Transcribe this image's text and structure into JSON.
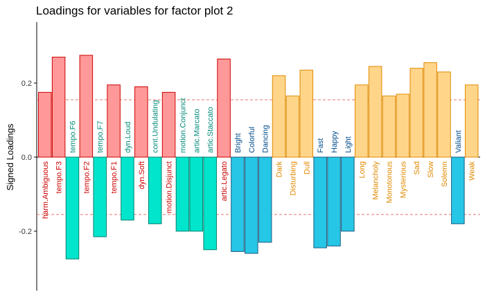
{
  "chart_data": {
    "type": "bar",
    "title": "Loadings for variables for factor plot 2",
    "xlabel": "",
    "ylabel": "Signed Loadings",
    "ylim": [
      -0.36,
      0.36
    ],
    "yticks": [
      -0.2,
      0.0,
      0.2
    ],
    "ytick_labels": [
      "-0.2",
      "0.0",
      "0.2"
    ],
    "reference_lines": [
      0.155,
      -0.155
    ],
    "grid": false,
    "colors": {
      "red_fill": "#FF9999",
      "red_stroke": "#CC0000",
      "red_text": "#CC0000",
      "teal_fill": "#00E5CC",
      "teal_stroke": "#008070",
      "teal_text": "#008B7A",
      "blue_fill": "#26C6E6",
      "blue_stroke": "#1A5C80",
      "blue_text": "#004C8C",
      "orange_fill": "#FFD58A",
      "orange_stroke": "#E08A00",
      "orange_text": "#E08A00",
      "refline": "#E8766F"
    },
    "categories": [
      "harm.Ambiguous",
      "tempo.F3",
      "tempo.F6",
      "tempo.F2",
      "tempo.F7",
      "tempo.F1",
      "dyn.Loud",
      "dyn.Soft",
      "cont.Undulating",
      "motion.Disjunct",
      "motion.Conjunct",
      "artic.Marcato",
      "artic.Staccato",
      "artic.Legato",
      "Bright",
      "Colorful",
      "Dancing",
      "Dark",
      "Disturbing",
      "Dull",
      "Fast",
      "Happy",
      "Light",
      "Long",
      "Melancholy",
      "Monotonous",
      "Mysterious",
      "Sad",
      "Slow",
      "Solemn",
      "Valiant",
      "Weak"
    ],
    "values": [
      0.175,
      0.27,
      -0.275,
      0.275,
      -0.215,
      0.195,
      -0.17,
      0.19,
      -0.18,
      0.175,
      -0.2,
      -0.2,
      -0.25,
      0.265,
      -0.255,
      -0.26,
      -0.23,
      0.22,
      0.165,
      0.235,
      -0.245,
      -0.24,
      -0.2,
      0.195,
      0.245,
      0.165,
      0.17,
      0.24,
      0.255,
      0.23,
      -0.18,
      0.195
    ],
    "groups": [
      "red",
      "red",
      "teal",
      "red",
      "teal",
      "red",
      "teal",
      "red",
      "teal",
      "red",
      "teal",
      "teal",
      "teal",
      "red",
      "blue",
      "blue",
      "blue",
      "orange",
      "orange",
      "orange",
      "blue",
      "blue",
      "blue",
      "orange",
      "orange",
      "orange",
      "orange",
      "orange",
      "orange",
      "orange",
      "blue",
      "orange"
    ]
  }
}
